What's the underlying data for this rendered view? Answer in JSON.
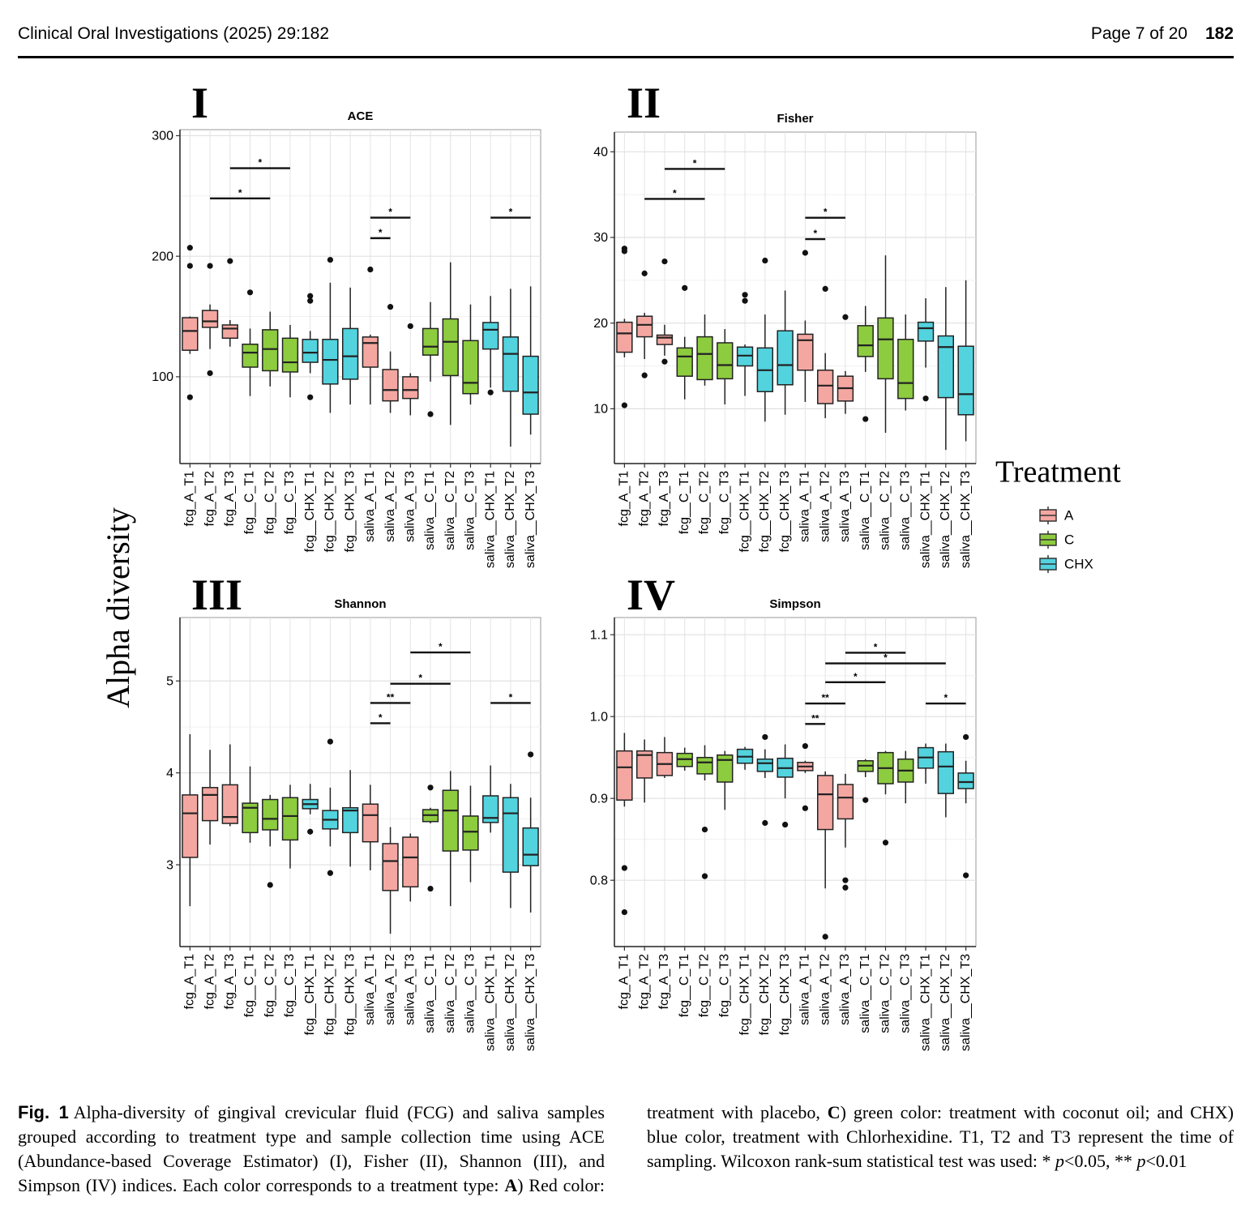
{
  "header": {
    "journal": "Clinical Oral Investigations (2025) 29:182",
    "page": "Page 7 of 20",
    "article": "182"
  },
  "y_axis_label": "Alpha diversity",
  "legend": {
    "title": "Treatment",
    "items": [
      {
        "name": "A",
        "color": "#f4a7a1"
      },
      {
        "name": "C",
        "color": "#8dcb3f"
      },
      {
        "name": "CHX",
        "color": "#52d3de"
      }
    ]
  },
  "chart_data": [
    {
      "type": "box",
      "panel": "I",
      "title": "ACE",
      "categories": [
        "fcg_A_T1",
        "fcg_A_T2",
        "fcg_A_T3",
        "fcg__C_T1",
        "fcg__C_T2",
        "fcg__C_T3",
        "fcg__CHX_T1",
        "fcg__CHX_T2",
        "fcg__CHX_T3",
        "saliva_A_T1",
        "saliva_A_T2",
        "saliva_A_T3",
        "saliva__C_T1",
        "saliva__C_T2",
        "saliva__C_T3",
        "saliva__CHX_T1",
        "saliva__CHX_T2",
        "saliva__CHX_T3"
      ],
      "colors": [
        "#f4a7a1",
        "#f4a7a1",
        "#f4a7a1",
        "#8dcb3f",
        "#8dcb3f",
        "#8dcb3f",
        "#52d3de",
        "#52d3de",
        "#52d3de",
        "#f4a7a1",
        "#f4a7a1",
        "#f4a7a1",
        "#8dcb3f",
        "#8dcb3f",
        "#8dcb3f",
        "#52d3de",
        "#52d3de",
        "#52d3de"
      ],
      "boxes": [
        [
          119,
          122,
          138,
          149,
          150
        ],
        [
          123,
          141,
          146,
          155,
          160
        ],
        [
          125,
          132,
          140,
          143,
          147
        ],
        [
          84,
          108,
          120,
          127,
          140
        ],
        [
          92,
          105,
          123,
          139,
          154
        ],
        [
          83,
          104,
          112,
          132,
          143
        ],
        [
          103,
          112,
          120,
          131,
          138
        ],
        [
          70,
          94,
          114,
          131,
          178
        ],
        [
          77,
          98,
          117,
          140,
          174
        ],
        [
          77,
          108,
          128,
          133,
          135
        ],
        [
          70,
          80,
          89,
          106,
          121
        ],
        [
          68,
          82,
          89,
          100,
          103
        ],
        [
          96,
          118,
          125,
          140,
          162
        ],
        [
          60,
          101,
          129,
          148,
          195
        ],
        [
          77,
          86,
          95,
          130,
          160
        ],
        [
          91,
          123,
          139,
          145,
          167
        ],
        [
          42,
          88,
          119,
          133,
          173
        ],
        [
          52,
          69,
          87,
          117,
          175
        ]
      ],
      "outliers": [
        [
          207,
          192,
          83
        ],
        [
          192,
          103
        ],
        [
          196
        ],
        [
          170
        ],
        [],
        [],
        [
          167,
          163,
          83
        ],
        [
          197
        ],
        [],
        [
          189
        ],
        [
          158
        ],
        [
          142
        ],
        [
          69
        ],
        [],
        [],
        [
          87
        ],
        [],
        []
      ],
      "ylim": [
        28,
        305
      ],
      "yticks": [
        100,
        200,
        300
      ],
      "grid": true,
      "brackets": [
        {
          "from": 1,
          "to": 4,
          "y": 248,
          "label": "*"
        },
        {
          "from": 2,
          "to": 5,
          "y": 273,
          "label": "*"
        },
        {
          "from": 9,
          "to": 10,
          "y": 215,
          "label": "*"
        },
        {
          "from": 9,
          "to": 11,
          "y": 232,
          "label": "*"
        },
        {
          "from": 15,
          "to": 17,
          "y": 232,
          "label": "*"
        }
      ]
    },
    {
      "type": "box",
      "panel": "II",
      "title": "Fisher",
      "categories": [
        "fcg_A_T1",
        "fcg_A_T2",
        "fcg_A_T3",
        "fcg__C_T1",
        "fcg__C_T2",
        "fcg__C_T3",
        "fcg__CHX_T1",
        "fcg__CHX_T2",
        "fcg__CHX_T3",
        "saliva_A_T1",
        "saliva_A_T2",
        "saliva_A_T3",
        "saliva__C_T1",
        "saliva__C_T2",
        "saliva__C_T3",
        "saliva__CHX_T1",
        "saliva__CHX_T2",
        "saliva__CHX_T3"
      ],
      "colors": [
        "#f4a7a1",
        "#f4a7a1",
        "#f4a7a1",
        "#8dcb3f",
        "#8dcb3f",
        "#8dcb3f",
        "#52d3de",
        "#52d3de",
        "#52d3de",
        "#f4a7a1",
        "#f4a7a1",
        "#f4a7a1",
        "#8dcb3f",
        "#8dcb3f",
        "#8dcb3f",
        "#52d3de",
        "#52d3de",
        "#52d3de"
      ],
      "boxes": [
        [
          16,
          16.6,
          18.8,
          20.1,
          20.5
        ],
        [
          15.8,
          18.4,
          19.8,
          20.8,
          21.2
        ],
        [
          16.2,
          17.5,
          18.3,
          18.6,
          19.8
        ],
        [
          11.1,
          13.8,
          16.1,
          17.1,
          18.4
        ],
        [
          12.7,
          13.4,
          16.4,
          18.4,
          21
        ],
        [
          10.5,
          13.5,
          15.1,
          17.7,
          19.3
        ],
        [
          11.5,
          15,
          16.2,
          17.2,
          17.5
        ],
        [
          8.5,
          12,
          14.5,
          17.1,
          21
        ],
        [
          9.3,
          12.8,
          15.1,
          19.1,
          23.8
        ],
        [
          10.8,
          14.5,
          18,
          18.7,
          20.3
        ],
        [
          8.9,
          10.6,
          12.7,
          14.5,
          16.5
        ],
        [
          9.4,
          10.9,
          12.4,
          13.8,
          14.4
        ],
        [
          14.3,
          16.1,
          17.4,
          19.7,
          22
        ],
        [
          7.2,
          13.5,
          18.1,
          20.6,
          27.9
        ],
        [
          9.8,
          11.2,
          13,
          18.1,
          21
        ],
        [
          14.8,
          17.9,
          19.4,
          20.1,
          22.9
        ],
        [
          5.2,
          11.3,
          17.2,
          18.5,
          24.2
        ],
        [
          6.2,
          9.3,
          11.7,
          17.3,
          25
        ]
      ],
      "outliers": [
        [
          28.7,
          28.4,
          10.4
        ],
        [
          25.8,
          13.9
        ],
        [
          27.2,
          15.5
        ],
        [
          24.1
        ],
        [],
        [],
        [
          23.3,
          22.6
        ],
        [
          27.3
        ],
        [],
        [
          28.2
        ],
        [
          24
        ],
        [
          20.7
        ],
        [
          8.8
        ],
        [],
        [],
        [
          11.2
        ],
        [],
        []
      ],
      "ylim": [
        3.6,
        42.3
      ],
      "yticks": [
        10,
        20,
        30,
        40
      ],
      "grid": true,
      "brackets": [
        {
          "from": 1,
          "to": 4,
          "y": 34.5,
          "label": "*"
        },
        {
          "from": 2,
          "to": 5,
          "y": 38,
          "label": "*"
        },
        {
          "from": 9,
          "to": 10,
          "y": 29.8,
          "label": "*"
        },
        {
          "from": 9,
          "to": 11,
          "y": 32.3,
          "label": "*"
        }
      ]
    },
    {
      "type": "box",
      "panel": "III",
      "title": "Shannon",
      "categories": [
        "fcg_A_T1",
        "fcg_A_T2",
        "fcg_A_T3",
        "fcg__C_T1",
        "fcg__C_T2",
        "fcg__C_T3",
        "fcg__CHX_T1",
        "fcg__CHX_T2",
        "fcg__CHX_T3",
        "saliva_A_T1",
        "saliva_A_T2",
        "saliva_A_T3",
        "saliva__C_T1",
        "saliva__C_T2",
        "saliva__C_T3",
        "saliva__CHX_T1",
        "saliva__CHX_T2",
        "saliva__CHX_T3"
      ],
      "colors": [
        "#f4a7a1",
        "#f4a7a1",
        "#f4a7a1",
        "#8dcb3f",
        "#8dcb3f",
        "#8dcb3f",
        "#52d3de",
        "#52d3de",
        "#52d3de",
        "#f4a7a1",
        "#f4a7a1",
        "#f4a7a1",
        "#8dcb3f",
        "#8dcb3f",
        "#8dcb3f",
        "#52d3de",
        "#52d3de",
        "#52d3de"
      ],
      "boxes": [
        [
          2.55,
          3.08,
          3.56,
          3.76,
          4.42
        ],
        [
          3.22,
          3.48,
          3.76,
          3.84,
          4.25
        ],
        [
          3.42,
          3.45,
          3.52,
          3.87,
          4.31
        ],
        [
          3.24,
          3.35,
          3.62,
          3.67,
          4.07
        ],
        [
          3.2,
          3.38,
          3.5,
          3.71,
          3.76
        ],
        [
          2.96,
          3.27,
          3.53,
          3.73,
          3.87
        ],
        [
          3.55,
          3.61,
          3.66,
          3.71,
          3.88
        ],
        [
          3.2,
          3.39,
          3.49,
          3.59,
          3.84
        ],
        [
          2.98,
          3.35,
          3.59,
          3.62,
          4.03
        ],
        [
          2.94,
          3.25,
          3.54,
          3.66,
          3.87
        ],
        [
          2.25,
          2.72,
          3.04,
          3.23,
          3.41
        ],
        [
          2.6,
          2.76,
          3.08,
          3.3,
          3.34
        ],
        [
          3.45,
          3.47,
          3.54,
          3.6,
          3.62
        ],
        [
          2.55,
          3.15,
          3.59,
          3.81,
          4.02
        ],
        [
          2.81,
          3.16,
          3.36,
          3.53,
          3.86
        ],
        [
          3.35,
          3.46,
          3.51,
          3.75,
          4.08
        ],
        [
          2.53,
          2.92,
          3.56,
          3.73,
          3.88
        ],
        [
          2.48,
          2.99,
          3.11,
          3.4,
          3.73
        ]
      ],
      "outliers": [
        [],
        [],
        [],
        [],
        [
          2.78
        ],
        [],
        [
          3.36
        ],
        [
          4.34,
          2.91
        ],
        [],
        [],
        [],
        [],
        [
          3.84,
          2.74
        ],
        [],
        [],
        [],
        [],
        [
          4.2
        ]
      ],
      "ylim": [
        2.11,
        5.69
      ],
      "yticks": [
        3,
        4,
        5
      ],
      "grid": true,
      "brackets": [
        {
          "from": 9,
          "to": 10,
          "y": 4.54,
          "label": "*"
        },
        {
          "from": 9,
          "to": 11,
          "y": 4.76,
          "label": "**"
        },
        {
          "from": 10,
          "to": 13,
          "y": 4.97,
          "label": "*"
        },
        {
          "from": 11,
          "to": 14,
          "y": 5.31,
          "label": "*"
        },
        {
          "from": 15,
          "to": 17,
          "y": 4.76,
          "label": "*"
        }
      ]
    },
    {
      "type": "box",
      "panel": "IV",
      "title": "Simpson",
      "categories": [
        "fcg_A_T1",
        "fcg_A_T2",
        "fcg_A_T3",
        "fcg__C_T1",
        "fcg__C_T2",
        "fcg__C_T3",
        "fcg__CHX_T1",
        "fcg__CHX_T2",
        "fcg__CHX_T3",
        "saliva_A_T1",
        "saliva_A_T2",
        "saliva_A_T3",
        "saliva__C_T1",
        "saliva__C_T2",
        "saliva__C_T3",
        "saliva__CHX_T1",
        "saliva__CHX_T2",
        "saliva__CHX_T3"
      ],
      "colors": [
        "#f4a7a1",
        "#f4a7a1",
        "#f4a7a1",
        "#8dcb3f",
        "#8dcb3f",
        "#8dcb3f",
        "#52d3de",
        "#52d3de",
        "#52d3de",
        "#f4a7a1",
        "#f4a7a1",
        "#f4a7a1",
        "#8dcb3f",
        "#8dcb3f",
        "#8dcb3f",
        "#52d3de",
        "#52d3de",
        "#52d3de"
      ],
      "boxes": [
        [
          0.89,
          0.898,
          0.938,
          0.958,
          0.98
        ],
        [
          0.895,
          0.925,
          0.953,
          0.958,
          0.972
        ],
        [
          0.925,
          0.928,
          0.942,
          0.956,
          0.975
        ],
        [
          0.934,
          0.939,
          0.948,
          0.955,
          0.962
        ],
        [
          0.922,
          0.93,
          0.944,
          0.95,
          0.965
        ],
        [
          0.886,
          0.92,
          0.947,
          0.953,
          0.958
        ],
        [
          0.935,
          0.943,
          0.951,
          0.96,
          0.963
        ],
        [
          0.925,
          0.933,
          0.943,
          0.948,
          0.96
        ],
        [
          0.9,
          0.926,
          0.937,
          0.949,
          0.966
        ],
        [
          0.931,
          0.934,
          0.939,
          0.944,
          0.946
        ],
        [
          0.79,
          0.862,
          0.905,
          0.928,
          0.933
        ],
        [
          0.84,
          0.875,
          0.901,
          0.917,
          0.93
        ],
        [
          0.926,
          0.933,
          0.94,
          0.946,
          0.948
        ],
        [
          0.905,
          0.918,
          0.937,
          0.956,
          0.958
        ],
        [
          0.894,
          0.92,
          0.934,
          0.948,
          0.958
        ],
        [
          0.918,
          0.937,
          0.95,
          0.962,
          0.967
        ],
        [
          0.877,
          0.906,
          0.939,
          0.957,
          0.967
        ],
        [
          0.894,
          0.912,
          0.92,
          0.931,
          0.946
        ]
      ],
      "outliers": [
        [
          0.815,
          0.761
        ],
        [],
        [],
        [],
        [
          0.862,
          0.805
        ],
        [],
        [],
        [
          0.975,
          0.87
        ],
        [
          0.868
        ],
        [
          0.964,
          0.888
        ],
        [
          0.731
        ],
        [
          0.8,
          0.791
        ],
        [
          0.898
        ],
        [
          0.846
        ],
        [],
        [],
        [],
        [
          0.975,
          0.806
        ]
      ],
      "ylim": [
        0.719,
        1.121
      ],
      "yticks": [
        0.8,
        0.9,
        {
          "value": 1,
          "label": "1.0"
        },
        1.1
      ],
      "grid": true,
      "brackets": [
        {
          "from": 9,
          "to": 10,
          "y": 0.991,
          "label": "**"
        },
        {
          "from": 9,
          "to": 11,
          "y": 1.016,
          "label": "**"
        },
        {
          "from": 10,
          "to": 13,
          "y": 1.042,
          "label": "*"
        },
        {
          "from": 10,
          "to": 16,
          "y": 1.065,
          "label": "*"
        },
        {
          "from": 11,
          "to": 14,
          "y": 1.078,
          "label": "*"
        },
        {
          "from": 15,
          "to": 17,
          "y": 1.016,
          "label": "*"
        }
      ]
    }
  ],
  "caption": {
    "label": "Fig. 1",
    "runs": [
      {
        "text": "Alpha-diversity of gingival crevicular fluid (FCG) and saliva samples grouped according to treatment type and sample collection time using ACE (Abundance-based Coverage Estimator) (I), Fisher (II), Shannon (III), and Simpson (IV) indices. Each color corresponds to a treatment type: "
      },
      {
        "text": "A",
        "style": "bold"
      },
      {
        "text": ") Red color: treatment with placebo, "
      },
      {
        "text": "C",
        "style": "bold"
      },
      {
        "text": ") green color: treatment with coconut oil; and CHX) blue color, treatment with Chlorhexidine. T1, T2 and T3 represent the time of sampling. Wilcoxon rank-sum statistical test was used: * "
      },
      {
        "text": "p",
        "style": "italic"
      },
      {
        "text": "<0.05, ** "
      },
      {
        "text": "p",
        "style": "italic"
      },
      {
        "text": "<0.01"
      }
    ]
  }
}
